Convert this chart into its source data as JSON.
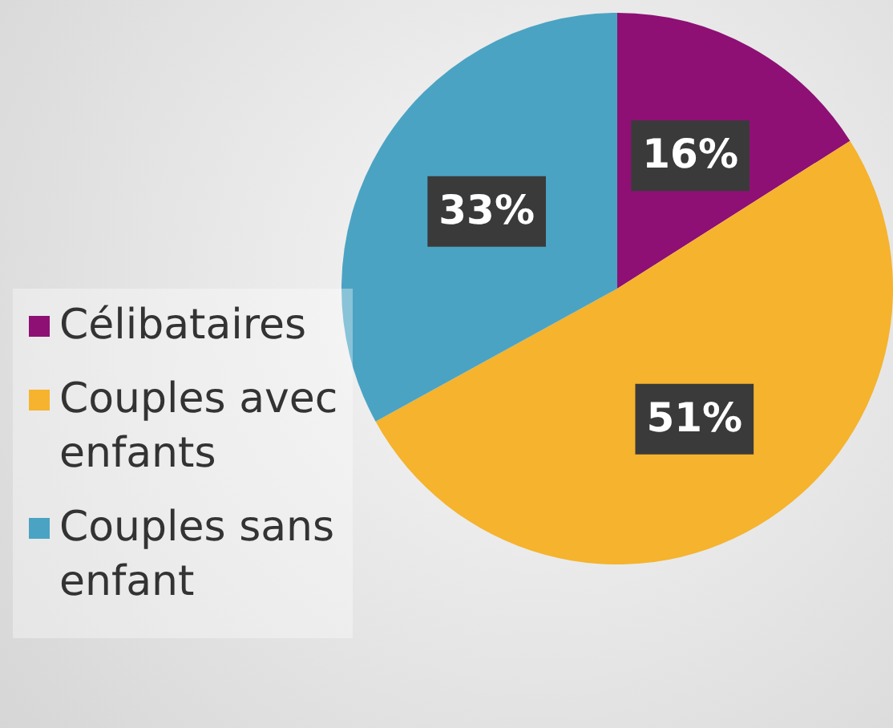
{
  "chart_data": {
    "type": "pie",
    "categories": [
      "Célibataires",
      "Couples avec enfants",
      "Couples sans enfant"
    ],
    "values": [
      16,
      51,
      33
    ],
    "colors": [
      "#8e1074",
      "#f5b32e",
      "#4ba3c3"
    ],
    "value_labels": [
      "16%",
      "51%",
      "33%"
    ],
    "legend": "left"
  }
}
